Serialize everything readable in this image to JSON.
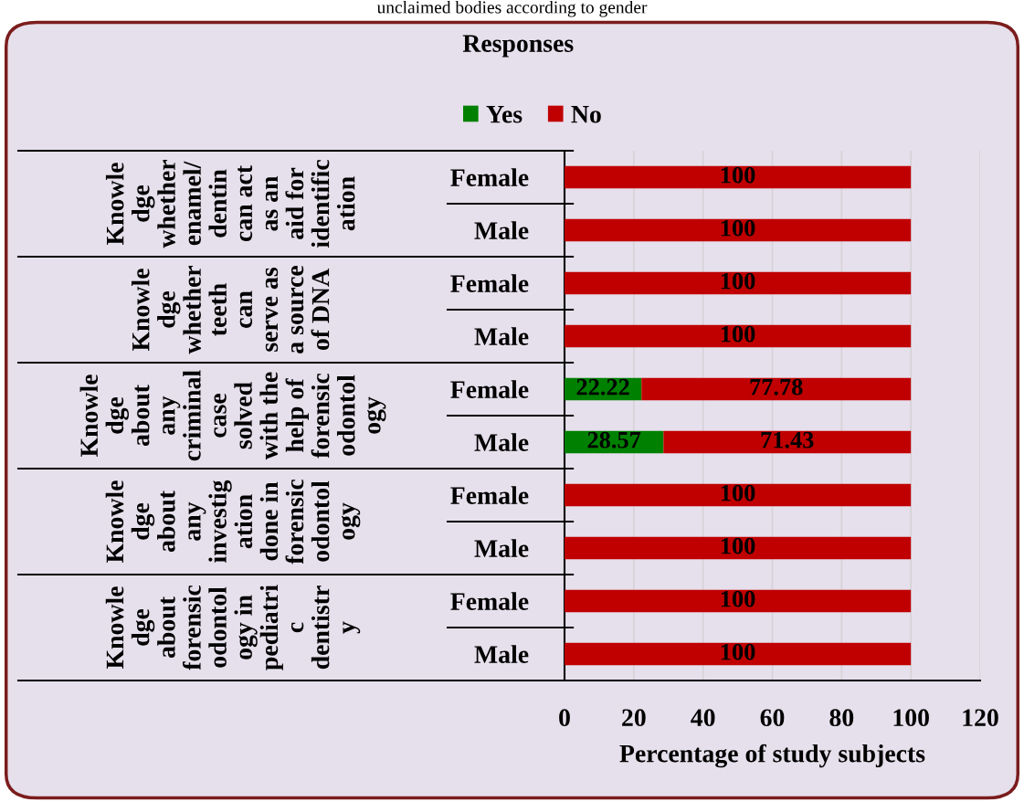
{
  "chart_data": {
    "type": "bar",
    "orientation": "horizontal",
    "stacked": true,
    "title": "Responses",
    "categories": [
      "Female",
      "Male",
      "Female",
      "Male",
      "Female",
      "Male",
      "Female",
      "Male",
      "Female",
      "Male"
    ],
    "series": [
      {
        "name": "Yes",
        "color": "#008000",
        "values": [
          0,
          0,
          0,
          0,
          22.22,
          28.57,
          0,
          0,
          0,
          0
        ],
        "value_labels": [
          null,
          null,
          null,
          null,
          "22.22",
          "28.57",
          null,
          null,
          null,
          null
        ]
      },
      {
        "name": "No",
        "color": "#c00000",
        "values": [
          100,
          100,
          100,
          100,
          77.78,
          71.43,
          100,
          100,
          100,
          100
        ],
        "value_labels": [
          "100",
          "100",
          "100",
          "100",
          "77.78",
          "71.43",
          "100",
          "100",
          "100",
          "100"
        ]
      }
    ],
    "annotations": [
      "unclaimed bodies according to gender",
      "Knowle\ndge\nwhether\nenamel/\ndentin\ncan act\nas an\naid for\nidentific\nation",
      "Knowle\ndge\nwhether\nteeth\ncan\nserve as\na source\nof DNA",
      "Knowle\ndge\nabout\nany\ncriminal\ncase\nsolved\nwith the\nhelp of\nforensic\nodontol\nogy",
      "Knowle\ndge\nabout\nany\ninvestig\nation\ndone in\nforensic\nodontol\nogy",
      "Knowle\ndge\nabout\nforensic\nodontol\nogy in\npediatri\nc\ndentistr\ny"
    ],
    "xlabel": "Percentage of study subjects",
    "xlim": [
      0,
      120
    ],
    "xticks": [
      0,
      20,
      40,
      60,
      80,
      100,
      120
    ],
    "grid": "x",
    "legend": "top"
  }
}
